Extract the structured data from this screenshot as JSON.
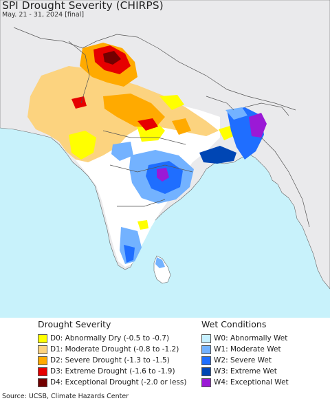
{
  "map": {
    "title": "SPI Drought Severity (CHIRPS)",
    "subtitle": "May. 21 - 31, 2024 [final]",
    "colors": {
      "ocean": "#c8f2fb",
      "land": "#eaeaec",
      "no_change": "#ffffff",
      "border": "#555555"
    }
  },
  "legend": {
    "drought": {
      "heading": "Drought Severity",
      "items": [
        {
          "label": "D0: Abnormally Dry (-0.5 to -0.7)",
          "color": "#ffff00"
        },
        {
          "label": "D1: Moderate Drought (-0.8 to -1.2)",
          "color": "#fcd37f"
        },
        {
          "label": "D2: Severe Drought (-1.3 to -1.5)",
          "color": "#ffaa00"
        },
        {
          "label": "D3: Extreme Drought (-1.6 to -1.9)",
          "color": "#e60000"
        },
        {
          "label": "D4: Exceptional Drought (-2.0 or less)",
          "color": "#730000"
        }
      ]
    },
    "wet": {
      "heading": "Wet Conditions",
      "items": [
        {
          "label": "W0: Abnormally Wet",
          "color": "#c6f0ff"
        },
        {
          "label": "W1: Moderate Wet",
          "color": "#73b2ff"
        },
        {
          "label": "W2: Severe Wet",
          "color": "#1f6eff"
        },
        {
          "label": "W3: Extreme Wet",
          "color": "#0046b4"
        },
        {
          "label": "W4: Exceptional Wet",
          "color": "#9b19d6"
        }
      ]
    }
  },
  "source": "Source: UCSB, Climate Hazards Center"
}
